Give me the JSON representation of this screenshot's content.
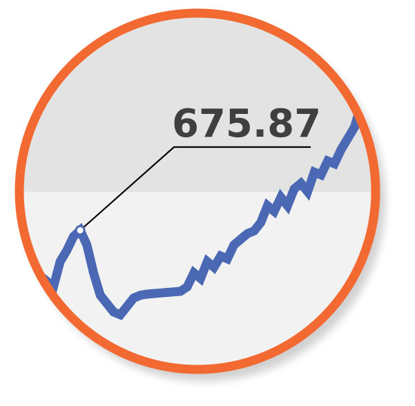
{
  "chart_data": {
    "type": "line",
    "title": "",
    "xlabel": "",
    "ylabel": "",
    "grid": false,
    "legend": "none",
    "series": [
      {
        "values": [
          560,
          585,
          575,
          620,
          640,
          665,
          676,
          650,
          600,
          560,
          545,
          530,
          525,
          540,
          555,
          560,
          562,
          563,
          564,
          565,
          566,
          567,
          575,
          600,
          590,
          620,
          610,
          630,
          625,
          650,
          660,
          670,
          675,
          690,
          720,
          710,
          735,
          720,
          750,
          760,
          745,
          780,
          775,
          800,
          795,
          820,
          840,
          860,
          900
        ]
      }
    ],
    "highlight": {
      "index": 6,
      "value": 676,
      "label": "675.87"
    },
    "band_split_value": 745
  },
  "style": {
    "line_color": "#4a68b4",
    "ring_color": "#f26a32",
    "band_upper_color": "#e3e3e3",
    "band_lower_color": "#f2f2f3",
    "label_color": "#3f3f3f",
    "leader_color": "#000000",
    "marker_fill": "#ffffff",
    "marker_stroke": "#4a68b4"
  }
}
